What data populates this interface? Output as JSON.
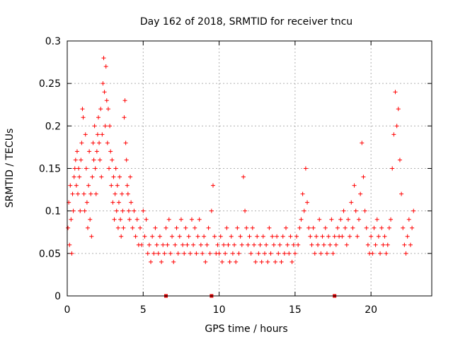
{
  "chart_data": {
    "type": "scatter",
    "title": "Day 162 of 2018, SRMTID for receiver tncu",
    "xlabel": "GPS time / hours",
    "ylabel": "SRMTID / TECUs",
    "xlim": [
      0,
      24
    ],
    "ylim": [
      0,
      0.3
    ],
    "xticks": [
      0,
      5,
      10,
      15,
      20
    ],
    "yticks": [
      0,
      0.05,
      0.1,
      0.15,
      0.2,
      0.25,
      0.3
    ],
    "xtick_labels": [
      "0",
      "5",
      "10",
      "15",
      "20"
    ],
    "ytick_labels": [
      "0",
      "0.05",
      "0.1",
      "0.15",
      "0.2",
      "0.25",
      "0.3"
    ],
    "grid": true,
    "legend": false,
    "colors": {
      "points": "#ff0000",
      "markers": "#e00000",
      "grid": "#b0b0b0",
      "axis": "#000000"
    },
    "marker": "plus",
    "series": [
      {
        "points": [
          [
            0.05,
            0.08
          ],
          [
            0.1,
            0.11
          ],
          [
            0.15,
            0.06
          ],
          [
            0.2,
            0.13
          ],
          [
            0.25,
            0.09
          ],
          [
            0.3,
            0.05
          ],
          [
            0.35,
            0.12
          ],
          [
            0.4,
            0.1
          ],
          [
            0.45,
            0.14
          ],
          [
            0.5,
            0.15
          ],
          [
            0.55,
            0.16
          ],
          [
            0.6,
            0.13
          ],
          [
            0.65,
            0.17
          ],
          [
            0.7,
            0.12
          ],
          [
            0.75,
            0.15
          ],
          [
            0.8,
            0.14
          ],
          [
            0.85,
            0.1
          ],
          [
            0.9,
            0.16
          ],
          [
            0.95,
            0.18
          ],
          [
            1.0,
            0.22
          ],
          [
            1.05,
            0.21
          ],
          [
            1.1,
            0.12
          ],
          [
            1.15,
            0.1
          ],
          [
            1.2,
            0.19
          ],
          [
            1.25,
            0.15
          ],
          [
            1.3,
            0.11
          ],
          [
            1.35,
            0.08
          ],
          [
            1.4,
            0.13
          ],
          [
            1.45,
            0.17
          ],
          [
            1.5,
            0.09
          ],
          [
            1.55,
            0.12
          ],
          [
            1.6,
            0.07
          ],
          [
            1.65,
            0.14
          ],
          [
            1.7,
            0.18
          ],
          [
            1.75,
            0.16
          ],
          [
            1.8,
            0.2
          ],
          [
            1.85,
            0.15
          ],
          [
            1.9,
            0.12
          ],
          [
            1.95,
            0.17
          ],
          [
            2.0,
            0.19
          ],
          [
            2.05,
            0.21
          ],
          [
            2.1,
            0.18
          ],
          [
            2.15,
            0.16
          ],
          [
            2.2,
            0.22
          ],
          [
            2.25,
            0.14
          ],
          [
            2.3,
            0.19
          ],
          [
            2.35,
            0.25
          ],
          [
            2.4,
            0.28
          ],
          [
            2.45,
            0.24
          ],
          [
            2.5,
            0.2
          ],
          [
            2.55,
            0.27
          ],
          [
            2.6,
            0.23
          ],
          [
            2.65,
            0.18
          ],
          [
            2.7,
            0.22
          ],
          [
            2.75,
            0.15
          ],
          [
            2.8,
            0.2
          ],
          [
            2.85,
            0.17
          ],
          [
            2.9,
            0.13
          ],
          [
            2.95,
            0.16
          ],
          [
            3.0,
            0.11
          ],
          [
            3.05,
            0.14
          ],
          [
            3.1,
            0.09
          ],
          [
            3.15,
            0.12
          ],
          [
            3.2,
            0.15
          ],
          [
            3.25,
            0.1
          ],
          [
            3.3,
            0.13
          ],
          [
            3.35,
            0.08
          ],
          [
            3.4,
            0.11
          ],
          [
            3.45,
            0.14
          ],
          [
            3.5,
            0.09
          ],
          [
            3.55,
            0.07
          ],
          [
            3.6,
            0.12
          ],
          [
            3.65,
            0.1
          ],
          [
            3.7,
            0.08
          ],
          [
            3.75,
            0.21
          ],
          [
            3.8,
            0.23
          ],
          [
            3.85,
            0.18
          ],
          [
            3.9,
            0.16
          ],
          [
            3.95,
            0.13
          ],
          [
            4.0,
            0.12
          ],
          [
            4.05,
            0.1
          ],
          [
            4.1,
            0.09
          ],
          [
            4.15,
            0.14
          ],
          [
            4.2,
            0.11
          ],
          [
            4.3,
            0.08
          ],
          [
            4.4,
            0.1
          ],
          [
            4.5,
            0.07
          ],
          [
            4.6,
            0.09
          ],
          [
            4.7,
            0.06
          ],
          [
            4.8,
            0.08
          ],
          [
            4.9,
            0.06
          ],
          [
            5.0,
            0.1
          ],
          [
            5.1,
            0.07
          ],
          [
            5.2,
            0.09
          ],
          [
            5.3,
            0.05
          ],
          [
            5.4,
            0.06
          ],
          [
            5.5,
            0.04
          ],
          [
            5.6,
            0.07
          ],
          [
            5.7,
            0.05
          ],
          [
            5.8,
            0.08
          ],
          [
            5.9,
            0.06
          ],
          [
            6.0,
            0.05
          ],
          [
            6.1,
            0.07
          ],
          [
            6.2,
            0.04
          ],
          [
            6.3,
            0.06
          ],
          [
            6.4,
            0.05
          ],
          [
            6.5,
            0.08
          ],
          [
            6.6,
            0.06
          ],
          [
            6.7,
            0.09
          ],
          [
            6.8,
            0.05
          ],
          [
            6.9,
            0.07
          ],
          [
            7.0,
            0.04
          ],
          [
            7.1,
            0.06
          ],
          [
            7.2,
            0.08
          ],
          [
            7.3,
            0.05
          ],
          [
            7.4,
            0.07
          ],
          [
            7.5,
            0.09
          ],
          [
            7.6,
            0.06
          ],
          [
            7.7,
            0.05
          ],
          [
            7.8,
            0.08
          ],
          [
            7.9,
            0.06
          ],
          [
            8.0,
            0.07
          ],
          [
            8.1,
            0.05
          ],
          [
            8.2,
            0.09
          ],
          [
            8.3,
            0.06
          ],
          [
            8.4,
            0.08
          ],
          [
            8.5,
            0.05
          ],
          [
            8.6,
            0.07
          ],
          [
            8.7,
            0.09
          ],
          [
            8.8,
            0.06
          ],
          [
            8.9,
            0.05
          ],
          [
            9.0,
            0.07
          ],
          [
            9.1,
            0.04
          ],
          [
            9.2,
            0.06
          ],
          [
            9.3,
            0.08
          ],
          [
            9.4,
            0.05
          ],
          [
            9.5,
            0.1
          ],
          [
            9.6,
            0.13
          ],
          [
            9.7,
            0.07
          ],
          [
            9.8,
            0.05
          ],
          [
            9.9,
            0.06
          ],
          [
            10.0,
            0.05
          ],
          [
            10.1,
            0.07
          ],
          [
            10.2,
            0.04
          ],
          [
            10.3,
            0.06
          ],
          [
            10.4,
            0.05
          ],
          [
            10.5,
            0.08
          ],
          [
            10.6,
            0.06
          ],
          [
            10.7,
            0.04
          ],
          [
            10.8,
            0.07
          ],
          [
            10.9,
            0.05
          ],
          [
            11.0,
            0.06
          ],
          [
            11.1,
            0.04
          ],
          [
            11.2,
            0.08
          ],
          [
            11.3,
            0.05
          ],
          [
            11.4,
            0.07
          ],
          [
            11.5,
            0.06
          ],
          [
            11.6,
            0.14
          ],
          [
            11.7,
            0.1
          ],
          [
            11.8,
            0.08
          ],
          [
            11.9,
            0.06
          ],
          [
            12.0,
            0.07
          ],
          [
            12.1,
            0.05
          ],
          [
            12.2,
            0.08
          ],
          [
            12.3,
            0.06
          ],
          [
            12.4,
            0.04
          ],
          [
            12.5,
            0.07
          ],
          [
            12.6,
            0.05
          ],
          [
            12.7,
            0.06
          ],
          [
            12.8,
            0.04
          ],
          [
            12.9,
            0.07
          ],
          [
            13.0,
            0.05
          ],
          [
            13.1,
            0.06
          ],
          [
            13.2,
            0.04
          ],
          [
            13.3,
            0.08
          ],
          [
            13.4,
            0.05
          ],
          [
            13.5,
            0.07
          ],
          [
            13.6,
            0.06
          ],
          [
            13.7,
            0.04
          ],
          [
            13.8,
            0.07
          ],
          [
            13.9,
            0.05
          ],
          [
            14.0,
            0.06
          ],
          [
            14.1,
            0.04
          ],
          [
            14.2,
            0.07
          ],
          [
            14.3,
            0.05
          ],
          [
            14.4,
            0.08
          ],
          [
            14.5,
            0.06
          ],
          [
            14.6,
            0.05
          ],
          [
            14.7,
            0.07
          ],
          [
            14.8,
            0.04
          ],
          [
            14.9,
            0.06
          ],
          [
            15.0,
            0.05
          ],
          [
            15.1,
            0.07
          ],
          [
            15.2,
            0.06
          ],
          [
            15.3,
            0.08
          ],
          [
            15.4,
            0.09
          ],
          [
            15.5,
            0.12
          ],
          [
            15.6,
            0.1
          ],
          [
            15.7,
            0.15
          ],
          [
            15.8,
            0.11
          ],
          [
            15.9,
            0.08
          ],
          [
            16.0,
            0.07
          ],
          [
            16.1,
            0.06
          ],
          [
            16.2,
            0.08
          ],
          [
            16.3,
            0.05
          ],
          [
            16.4,
            0.07
          ],
          [
            16.5,
            0.06
          ],
          [
            16.6,
            0.09
          ],
          [
            16.7,
            0.05
          ],
          [
            16.8,
            0.07
          ],
          [
            16.9,
            0.06
          ],
          [
            17.0,
            0.08
          ],
          [
            17.1,
            0.05
          ],
          [
            17.2,
            0.07
          ],
          [
            17.3,
            0.06
          ],
          [
            17.4,
            0.09
          ],
          [
            17.5,
            0.05
          ],
          [
            17.6,
            0.07
          ],
          [
            17.7,
            0.06
          ],
          [
            17.8,
            0.08
          ],
          [
            17.9,
            0.07
          ],
          [
            18.0,
            0.09
          ],
          [
            18.1,
            0.07
          ],
          [
            18.2,
            0.1
          ],
          [
            18.3,
            0.08
          ],
          [
            18.4,
            0.06
          ],
          [
            18.5,
            0.09
          ],
          [
            18.6,
            0.07
          ],
          [
            18.7,
            0.11
          ],
          [
            18.8,
            0.08
          ],
          [
            18.9,
            0.13
          ],
          [
            19.0,
            0.1
          ],
          [
            19.1,
            0.07
          ],
          [
            19.2,
            0.09
          ],
          [
            19.3,
            0.12
          ],
          [
            19.4,
            0.18
          ],
          [
            19.5,
            0.14
          ],
          [
            19.6,
            0.1
          ],
          [
            19.7,
            0.08
          ],
          [
            19.8,
            0.06
          ],
          [
            19.9,
            0.05
          ],
          [
            20.0,
            0.07
          ],
          [
            20.1,
            0.05
          ],
          [
            20.2,
            0.08
          ],
          [
            20.3,
            0.06
          ],
          [
            20.4,
            0.09
          ],
          [
            20.5,
            0.07
          ],
          [
            20.6,
            0.05
          ],
          [
            20.7,
            0.08
          ],
          [
            20.8,
            0.06
          ],
          [
            20.9,
            0.07
          ],
          [
            21.0,
            0.05
          ],
          [
            21.1,
            0.06
          ],
          [
            21.2,
            0.08
          ],
          [
            21.3,
            0.09
          ],
          [
            21.4,
            0.15
          ],
          [
            21.5,
            0.19
          ],
          [
            21.6,
            0.24
          ],
          [
            21.7,
            0.2
          ],
          [
            21.8,
            0.22
          ],
          [
            21.9,
            0.16
          ],
          [
            22.0,
            0.12
          ],
          [
            22.1,
            0.08
          ],
          [
            22.2,
            0.06
          ],
          [
            22.3,
            0.05
          ],
          [
            22.4,
            0.07
          ],
          [
            22.5,
            0.09
          ],
          [
            22.6,
            0.06
          ],
          [
            22.7,
            0.08
          ],
          [
            22.8,
            0.1
          ]
        ]
      }
    ],
    "axis_markers_x": [
      6.5,
      9.5,
      17.6
    ]
  }
}
